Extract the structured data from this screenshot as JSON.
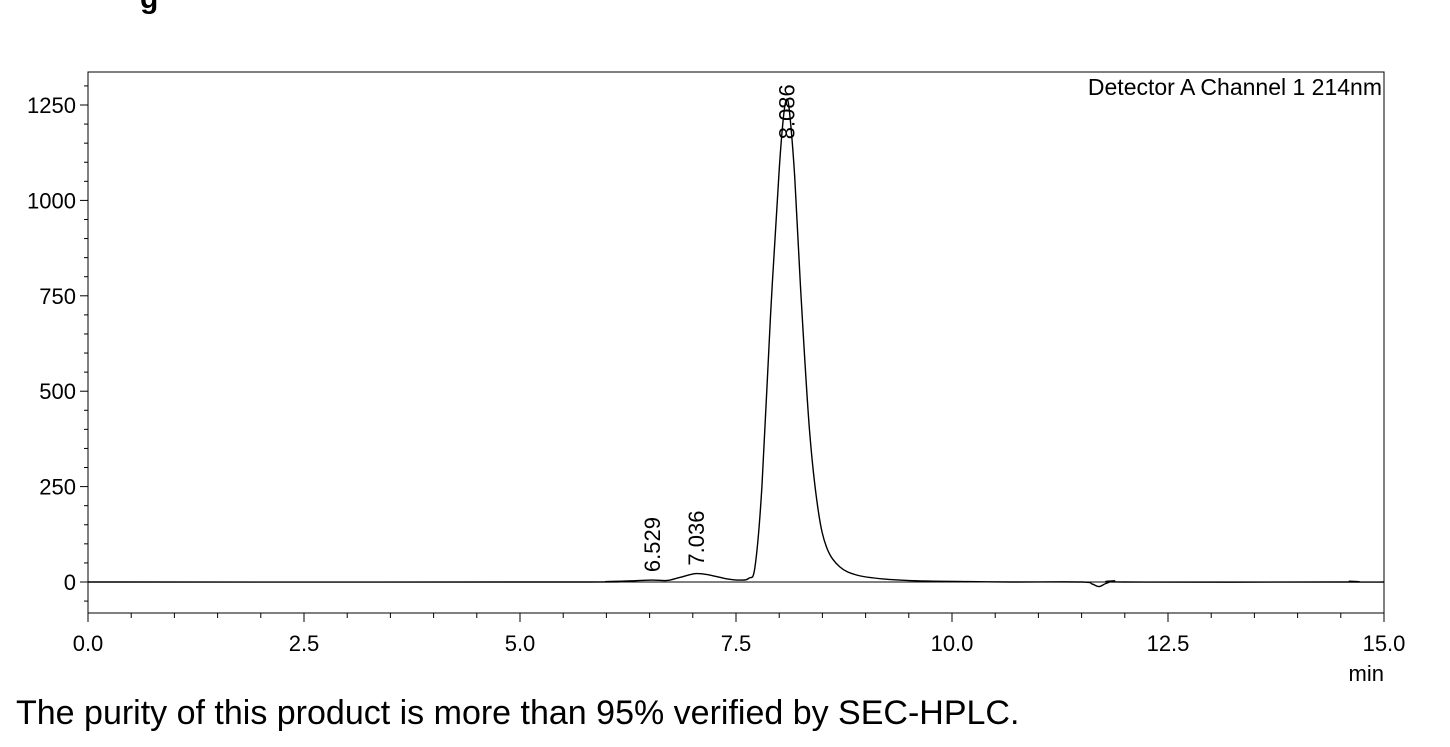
{
  "top_fragment": "g",
  "caption": "The purity of this product is more than 95% verified by SEC-HPLC.",
  "chart_data": {
    "type": "line",
    "title": "",
    "legend_text": "Detector A Channel 1 214nm",
    "xlabel": "min",
    "ylabel": "",
    "xlim": [
      0,
      15
    ],
    "ylim": [
      -80,
      1340
    ],
    "x_ticks": [
      0,
      2.5,
      5,
      7.5,
      10,
      12.5,
      15
    ],
    "x_tick_labels": [
      "0.0",
      "2.5",
      "5.0",
      "7.5",
      "10.0",
      "12.5",
      "15.0"
    ],
    "y_ticks": [
      0,
      250,
      500,
      750,
      1000,
      1250
    ],
    "y_tick_labels": [
      "0",
      "250",
      "500",
      "750",
      "1000",
      "1250"
    ],
    "grid": false,
    "baseline": 0,
    "peaks": [
      {
        "label": "6.529",
        "rt": 6.529,
        "height": 5
      },
      {
        "label": "7.036",
        "rt": 7.036,
        "height": 22
      },
      {
        "label": "8.086",
        "rt": 8.086,
        "height": 1265
      }
    ],
    "series": [
      {
        "x": [
          0,
          5.6,
          6.0,
          6.3,
          6.529,
          6.7,
          6.85,
          7.036,
          7.2,
          7.4,
          7.55,
          7.65,
          7.72,
          7.8,
          7.9,
          8.0,
          8.05,
          8.086,
          8.12,
          8.18,
          8.25,
          8.35,
          8.45,
          8.55,
          8.7,
          8.9,
          9.2,
          9.6,
          10.2,
          10.7,
          11.5,
          11.62,
          11.7,
          11.78,
          11.88,
          12.0,
          14.5,
          14.6,
          14.7,
          15.0
        ],
        "y": [
          0,
          0,
          1,
          3,
          5,
          4,
          12,
          22,
          18,
          8,
          5,
          10,
          40,
          250,
          700,
          1080,
          1220,
          1265,
          1230,
          1060,
          760,
          400,
          190,
          90,
          40,
          18,
          8,
          3,
          1,
          0,
          0,
          -5,
          -12,
          -4,
          3,
          0,
          0,
          2,
          0,
          0
        ]
      }
    ]
  }
}
